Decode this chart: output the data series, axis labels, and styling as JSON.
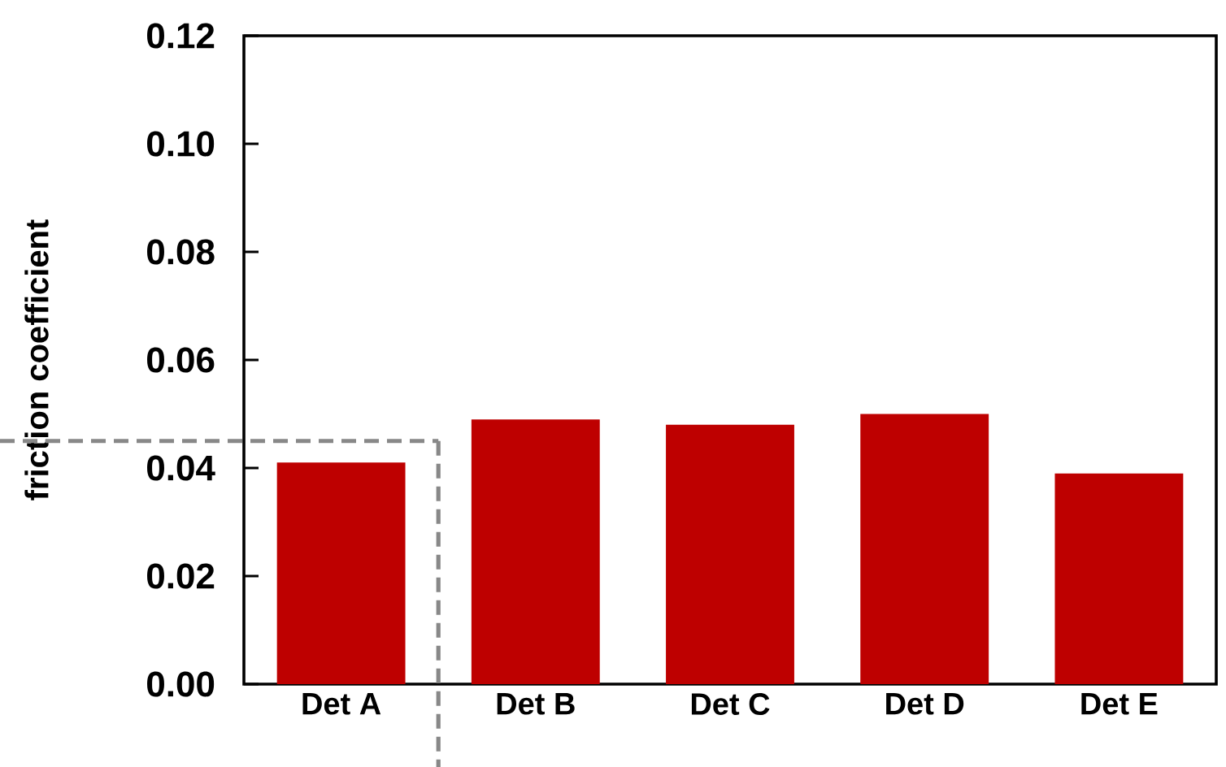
{
  "chart_data": {
    "type": "bar",
    "ylabel": "friction coefficient",
    "categories": [
      "Det A",
      "Det B",
      "Det C",
      "Det D",
      "Det E"
    ],
    "values": [
      0.041,
      0.049,
      0.048,
      0.05,
      0.039
    ],
    "color": "#be0000",
    "ylim": [
      0,
      0.12
    ],
    "yticks": [
      {
        "value": 0,
        "label": "0.00"
      },
      {
        "value": 0.02,
        "label": "0.02"
      },
      {
        "value": 0.04,
        "label": "0.04"
      },
      {
        "value": 0.06,
        "label": "0.06"
      },
      {
        "value": 0.08,
        "label": "0.08"
      },
      {
        "value": 0.1,
        "label": "0.10"
      },
      {
        "value": 0.12,
        "label": "0.12"
      }
    ],
    "ref_lines": [
      {
        "axis": "y",
        "value": 0.045,
        "color": "#888888",
        "line_style": "dashed"
      }
    ]
  }
}
